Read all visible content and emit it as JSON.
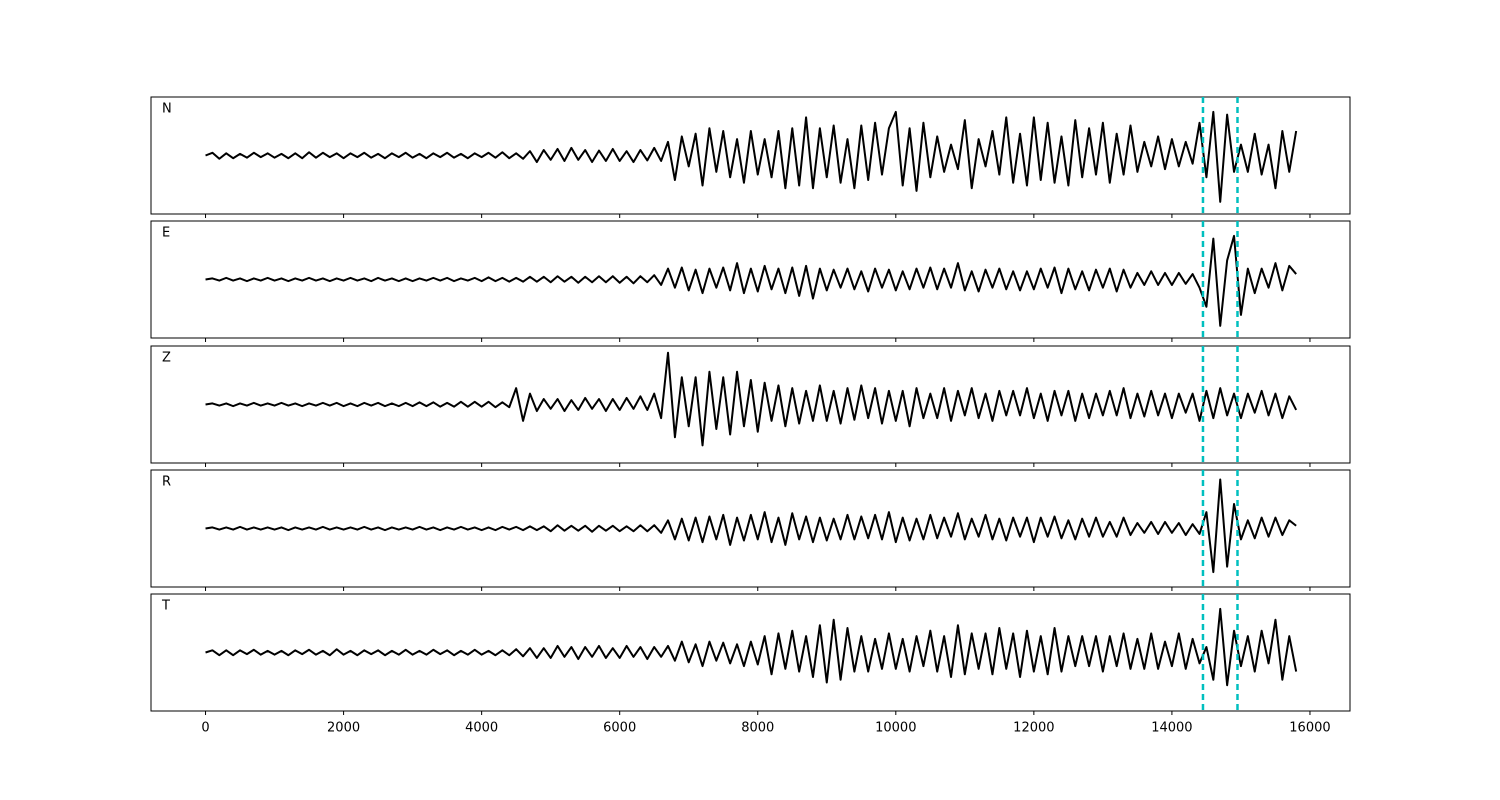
{
  "chart_data": {
    "type": "line",
    "x": [
      0,
      100,
      200,
      300,
      400,
      500,
      600,
      700,
      800,
      900,
      1000,
      1100,
      1200,
      1300,
      1400,
      1500,
      1600,
      1700,
      1800,
      1900,
      2000,
      2100,
      2200,
      2300,
      2400,
      2500,
      2600,
      2700,
      2800,
      2900,
      3000,
      3100,
      3200,
      3300,
      3400,
      3500,
      3600,
      3700,
      3800,
      3900,
      4000,
      4100,
      4200,
      4300,
      4400,
      4500,
      4600,
      4700,
      4800,
      4900,
      5000,
      5100,
      5200,
      5300,
      5400,
      5500,
      5600,
      5700,
      5800,
      5900,
      6000,
      6100,
      6200,
      6300,
      6400,
      6500,
      6600,
      6700,
      6800,
      6900,
      7000,
      7100,
      7200,
      7300,
      7400,
      7500,
      7600,
      7700,
      7800,
      7900,
      8000,
      8100,
      8200,
      8300,
      8400,
      8500,
      8600,
      8700,
      8800,
      8900,
      9000,
      9100,
      9200,
      9300,
      9400,
      9500,
      9600,
      9700,
      9800,
      9900,
      10000,
      10100,
      10200,
      10300,
      10400,
      10500,
      10600,
      10700,
      10800,
      10900,
      11000,
      11100,
      11200,
      11300,
      11400,
      11500,
      11600,
      11700,
      11800,
      11900,
      12000,
      12100,
      12200,
      12300,
      12400,
      12500,
      12600,
      12700,
      12800,
      12900,
      13000,
      13100,
      13200,
      13300,
      13400,
      13500,
      13600,
      13700,
      13800,
      13900,
      14000,
      14100,
      14200,
      14300,
      14400,
      14500,
      14600,
      14700,
      14800,
      14900,
      15000,
      15100,
      15200,
      15300,
      15400,
      15500,
      15600,
      15700,
      15800
    ],
    "series": [
      {
        "name": "N",
        "color": "#000000",
        "values": [
          0,
          0.05,
          -0.06,
          0.04,
          -0.05,
          0.03,
          -0.04,
          0.05,
          -0.03,
          0.04,
          -0.04,
          0.03,
          -0.05,
          0.04,
          -0.05,
          0.06,
          -0.04,
          0.05,
          -0.03,
          0.04,
          -0.05,
          0.04,
          -0.03,
          0.05,
          -0.04,
          0.03,
          -0.05,
          0.04,
          -0.03,
          0.05,
          -0.04,
          0.03,
          -0.05,
          0.04,
          -0.03,
          0.05,
          -0.04,
          0.03,
          -0.05,
          0.04,
          -0.03,
          0.05,
          -0.04,
          0.06,
          -0.05,
          0.04,
          -0.06,
          0.08,
          -0.12,
          0.1,
          -0.08,
          0.12,
          -0.1,
          0.14,
          -0.08,
          0.1,
          -0.12,
          0.09,
          -0.1,
          0.12,
          -0.1,
          0.08,
          -0.12,
          0.1,
          -0.09,
          0.14,
          -0.1,
          0.25,
          -0.45,
          0.35,
          -0.2,
          0.4,
          -0.55,
          0.5,
          -0.3,
          0.45,
          -0.4,
          0.3,
          -0.5,
          0.45,
          -0.35,
          0.3,
          -0.4,
          0.45,
          -0.6,
          0.5,
          -0.55,
          0.7,
          -0.6,
          0.5,
          -0.4,
          0.55,
          -0.5,
          0.3,
          -0.6,
          0.55,
          -0.45,
          0.6,
          -0.35,
          0.5,
          0.8,
          -0.55,
          0.5,
          -0.65,
          0.6,
          -0.4,
          0.35,
          -0.3,
          0.2,
          -0.25,
          0.65,
          -0.6,
          0.3,
          -0.2,
          0.45,
          -0.35,
          0.7,
          -0.5,
          0.4,
          -0.55,
          0.7,
          -0.45,
          0.6,
          -0.5,
          0.35,
          -0.55,
          0.65,
          -0.4,
          0.5,
          -0.35,
          0.6,
          -0.5,
          0.4,
          -0.35,
          0.55,
          -0.3,
          0.25,
          -0.2,
          0.35,
          -0.25,
          0.3,
          -0.2,
          0.25,
          -0.15,
          0.6,
          -0.4,
          0.8,
          -0.85,
          0.75,
          -0.3,
          0.2,
          -0.3,
          0.4,
          -0.35,
          0.2,
          -0.6,
          0.45,
          -0.3,
          0.45
        ]
      },
      {
        "name": "E",
        "color": "#000000",
        "values": [
          0,
          0.02,
          -0.02,
          0.03,
          -0.02,
          0.02,
          -0.03,
          0.02,
          -0.02,
          0.03,
          -0.02,
          0.02,
          -0.03,
          0.02,
          -0.02,
          0.03,
          -0.02,
          0.02,
          -0.03,
          0.02,
          -0.02,
          0.03,
          -0.02,
          0.02,
          -0.03,
          0.03,
          -0.02,
          0.02,
          -0.03,
          0.02,
          -0.03,
          0.02,
          -0.02,
          0.03,
          -0.02,
          0.03,
          -0.03,
          0.02,
          -0.02,
          0.03,
          -0.03,
          0.04,
          -0.03,
          0.03,
          -0.04,
          0.03,
          -0.04,
          0.05,
          -0.04,
          0.05,
          -0.05,
          0.06,
          -0.04,
          0.05,
          -0.06,
          0.05,
          -0.05,
          0.06,
          -0.05,
          0.06,
          -0.06,
          0.05,
          -0.07,
          0.06,
          -0.05,
          0.08,
          -0.1,
          0.2,
          -0.15,
          0.22,
          -0.2,
          0.18,
          -0.25,
          0.2,
          -0.15,
          0.22,
          -0.2,
          0.3,
          -0.25,
          0.2,
          -0.22,
          0.25,
          -0.18,
          0.2,
          -0.25,
          0.22,
          -0.3,
          0.25,
          -0.35,
          0.2,
          -0.2,
          0.18,
          -0.15,
          0.2,
          -0.18,
          0.15,
          -0.22,
          0.2,
          -0.15,
          0.18,
          -0.2,
          0.15,
          -0.18,
          0.2,
          -0.15,
          0.22,
          -0.18,
          0.2,
          -0.15,
          0.3,
          -0.2,
          0.15,
          -0.22,
          0.18,
          -0.15,
          0.2,
          -0.18,
          0.15,
          -0.2,
          0.15,
          -0.18,
          0.2,
          -0.15,
          0.22,
          -0.25,
          0.2,
          -0.18,
          0.15,
          -0.2,
          0.18,
          -0.15,
          0.2,
          -0.22,
          0.18,
          -0.15,
          0.12,
          -0.1,
          0.15,
          -0.1,
          0.12,
          -0.1,
          0.12,
          -0.08,
          0.1,
          -0.15,
          -0.5,
          0.75,
          -0.85,
          0.35,
          0.8,
          -0.65,
          0.2,
          -0.25,
          0.2,
          -0.15,
          0.3,
          -0.2,
          0.25,
          0.1
        ]
      },
      {
        "name": "Z",
        "color": "#000000",
        "values": [
          0,
          0.02,
          -0.02,
          0.02,
          -0.03,
          0.02,
          -0.02,
          0.03,
          -0.02,
          0.02,
          -0.02,
          0.03,
          -0.02,
          0.02,
          -0.03,
          0.02,
          -0.02,
          0.03,
          -0.02,
          0.03,
          -0.03,
          0.02,
          -0.03,
          0.03,
          -0.02,
          0.03,
          -0.03,
          0.02,
          -0.03,
          0.03,
          -0.03,
          0.04,
          -0.03,
          0.04,
          -0.04,
          0.03,
          -0.04,
          0.05,
          -0.04,
          0.05,
          -0.04,
          0.05,
          -0.05,
          0.04,
          -0.05,
          0.3,
          -0.3,
          0.2,
          -0.12,
          0.1,
          -0.08,
          0.1,
          -0.12,
          0.08,
          -0.1,
          0.12,
          -0.08,
          0.1,
          -0.12,
          0.1,
          -0.1,
          0.12,
          -0.08,
          0.15,
          -0.1,
          0.2,
          -0.25,
          0.95,
          -0.6,
          0.5,
          -0.4,
          0.5,
          -0.75,
          0.6,
          -0.45,
          0.5,
          -0.55,
          0.6,
          -0.4,
          0.45,
          -0.5,
          0.4,
          -0.3,
          0.35,
          -0.4,
          0.3,
          -0.35,
          0.25,
          -0.3,
          0.35,
          -0.3,
          0.25,
          -0.35,
          0.3,
          -0.28,
          0.35,
          -0.25,
          0.3,
          -0.35,
          0.25,
          -0.3,
          0.25,
          -0.4,
          0.3,
          -0.25,
          0.2,
          -0.25,
          0.3,
          -0.3,
          0.25,
          -0.2,
          0.3,
          -0.25,
          0.2,
          -0.3,
          0.25,
          -0.2,
          0.25,
          -0.2,
          0.3,
          -0.25,
          0.2,
          -0.3,
          0.25,
          -0.2,
          0.25,
          -0.3,
          0.2,
          -0.25,
          0.2,
          -0.2,
          0.25,
          -0.2,
          0.3,
          -0.25,
          0.2,
          -0.22,
          0.25,
          -0.2,
          0.2,
          -0.25,
          0.2,
          -0.15,
          0.2,
          -0.3,
          0.25,
          -0.25,
          0.3,
          -0.2,
          0.2,
          -0.25,
          0.2,
          -0.15,
          0.25,
          -0.2,
          0.2,
          -0.25,
          0.15,
          -0.1
        ]
      },
      {
        "name": "R",
        "color": "#000000",
        "values": [
          0,
          0.02,
          -0.02,
          0.02,
          -0.02,
          0.03,
          -0.02,
          0.02,
          -0.02,
          0.02,
          -0.02,
          0.02,
          -0.03,
          0.02,
          -0.02,
          0.02,
          -0.02,
          0.03,
          -0.02,
          0.02,
          -0.02,
          0.02,
          -0.02,
          0.03,
          -0.02,
          0.02,
          -0.03,
          0.02,
          -0.02,
          0.02,
          -0.02,
          0.03,
          -0.02,
          0.02,
          -0.03,
          0.02,
          -0.02,
          0.03,
          -0.02,
          0.02,
          -0.03,
          0.02,
          -0.03,
          0.03,
          -0.02,
          0.03,
          -0.03,
          0.04,
          -0.03,
          0.04,
          -0.05,
          0.06,
          -0.04,
          0.05,
          -0.04,
          0.05,
          -0.06,
          0.05,
          -0.04,
          0.05,
          -0.05,
          0.04,
          -0.05,
          0.06,
          -0.05,
          0.06,
          -0.08,
          0.15,
          -0.2,
          0.18,
          -0.22,
          0.2,
          -0.25,
          0.22,
          -0.2,
          0.25,
          -0.3,
          0.2,
          -0.22,
          0.25,
          -0.2,
          0.3,
          -0.25,
          0.2,
          -0.3,
          0.28,
          -0.2,
          0.22,
          -0.25,
          0.2,
          -0.22,
          0.18,
          -0.2,
          0.25,
          -0.2,
          0.22,
          -0.18,
          0.25,
          -0.2,
          0.3,
          -0.25,
          0.2,
          -0.22,
          0.18,
          -0.2,
          0.25,
          -0.18,
          0.2,
          -0.15,
          0.28,
          -0.2,
          0.18,
          -0.15,
          0.25,
          -0.2,
          0.18,
          -0.22,
          0.2,
          -0.15,
          0.2,
          -0.25,
          0.2,
          -0.15,
          0.22,
          -0.18,
          0.15,
          -0.2,
          0.18,
          -0.15,
          0.2,
          -0.15,
          0.12,
          -0.15,
          0.2,
          -0.12,
          0.1,
          -0.08,
          0.12,
          -0.1,
          0.12,
          -0.08,
          0.1,
          -0.12,
          0.08,
          -0.1,
          0.3,
          -0.8,
          0.9,
          -0.7,
          0.45,
          -0.2,
          0.15,
          -0.18,
          0.2,
          -0.15,
          0.2,
          -0.12,
          0.15,
          0.05
        ]
      },
      {
        "name": "T",
        "color": "#000000",
        "values": [
          0,
          0.04,
          -0.05,
          0.04,
          -0.05,
          0.04,
          -0.03,
          0.05,
          -0.04,
          0.03,
          -0.04,
          0.03,
          -0.05,
          0.04,
          -0.03,
          0.05,
          -0.04,
          0.03,
          -0.05,
          0.06,
          -0.04,
          0.03,
          -0.05,
          0.04,
          -0.03,
          0.04,
          -0.05,
          0.03,
          -0.04,
          0.05,
          -0.04,
          0.03,
          -0.04,
          0.05,
          -0.03,
          0.04,
          -0.05,
          0.03,
          -0.04,
          0.05,
          -0.04,
          0.03,
          -0.05,
          0.04,
          -0.05,
          0.06,
          -0.07,
          0.08,
          -0.1,
          0.08,
          -0.1,
          0.12,
          -0.08,
          0.1,
          -0.12,
          0.1,
          -0.08,
          0.12,
          -0.1,
          0.08,
          -0.1,
          0.12,
          -0.08,
          0.1,
          -0.12,
          0.1,
          -0.08,
          0.12,
          -0.15,
          0.2,
          -0.18,
          0.15,
          -0.25,
          0.2,
          -0.15,
          0.18,
          -0.2,
          0.15,
          -0.25,
          0.2,
          -0.22,
          0.3,
          -0.4,
          0.35,
          -0.3,
          0.4,
          -0.35,
          0.3,
          -0.45,
          0.5,
          -0.55,
          0.6,
          -0.5,
          0.45,
          -0.35,
          0.3,
          -0.35,
          0.25,
          -0.3,
          0.35,
          -0.3,
          0.25,
          -0.35,
          0.3,
          -0.25,
          0.4,
          -0.35,
          0.3,
          -0.45,
          0.5,
          -0.4,
          0.35,
          -0.3,
          0.35,
          -0.4,
          0.45,
          -0.3,
          0.35,
          -0.45,
          0.4,
          -0.35,
          0.3,
          -0.4,
          0.45,
          -0.35,
          0.3,
          -0.25,
          0.3,
          -0.25,
          0.3,
          -0.35,
          0.3,
          -0.25,
          0.35,
          -0.3,
          0.25,
          -0.3,
          0.35,
          -0.3,
          0.2,
          -0.25,
          0.35,
          -0.3,
          0.25,
          -0.2,
          0.1,
          -0.5,
          0.8,
          -0.6,
          0.4,
          -0.25,
          0.3,
          -0.35,
          0.4,
          -0.2,
          0.6,
          -0.5,
          0.3,
          -0.35
        ]
      }
    ],
    "vlines": [
      14450,
      14950
    ],
    "vline_color": "#00bfbf",
    "xlim": [
      -790,
      16580
    ],
    "xticks": [
      0,
      2000,
      4000,
      6000,
      8000,
      10000,
      12000,
      14000,
      16000
    ],
    "ylim": [
      -1,
      1
    ]
  }
}
